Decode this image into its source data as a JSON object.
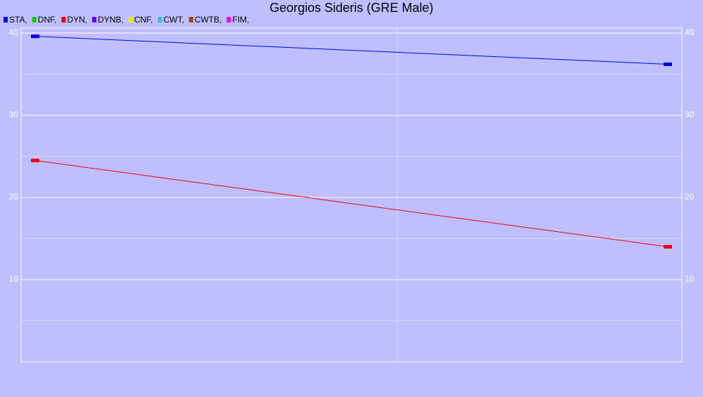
{
  "chart_data": {
    "type": "line",
    "title": "Georgios Sideris (GRE Male)",
    "categories": [
      null,
      null
    ],
    "series": [
      {
        "name": "STA,",
        "color": "#0000ee",
        "values": [
          39.6,
          36.2
        ]
      },
      {
        "name": "DNF,",
        "color": "#00cc00",
        "values": [
          null,
          null
        ]
      },
      {
        "name": "DYN,",
        "color": "#ee0000",
        "values": [
          24.5,
          14.0
        ]
      },
      {
        "name": "DYNB,",
        "color": "#6600ee",
        "values": [
          null,
          null
        ]
      },
      {
        "name": "CNF,",
        "color": "#eeee00",
        "values": [
          null,
          null
        ]
      },
      {
        "name": "CWT,",
        "color": "#33bbdd",
        "values": [
          null,
          null
        ]
      },
      {
        "name": "CWTB,",
        "color": "#aa4400",
        "values": [
          null,
          null
        ]
      },
      {
        "name": "FIM,",
        "color": "#ee00ee",
        "values": [
          null,
          null
        ]
      }
    ],
    "ylim": [
      0,
      40
    ],
    "yticks": [
      10,
      20,
      30,
      40
    ],
    "grid": true
  }
}
